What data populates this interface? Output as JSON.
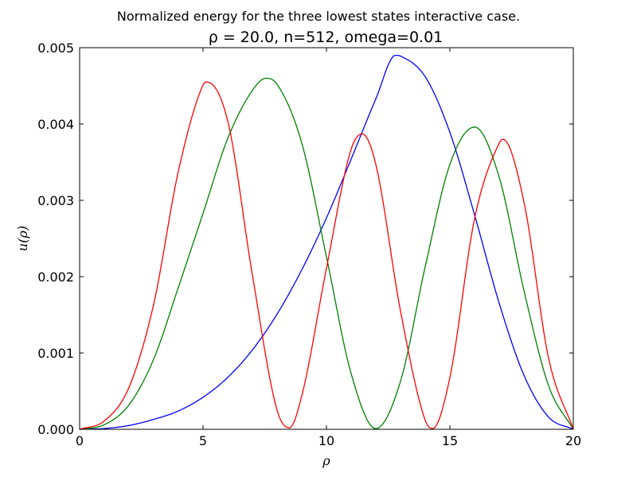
{
  "chart_data": {
    "type": "line",
    "suptitle": "Normalized energy for the three lowest states interactive case.",
    "title": "ρ = 20.0, n=512, omega=0.01",
    "xlabel": "ρ",
    "ylabel": "u(ρ)",
    "xlim": [
      0,
      20
    ],
    "ylim": [
      0,
      0.005
    ],
    "xticks": [
      "0",
      "5",
      "10",
      "15",
      "20"
    ],
    "yticks": [
      "0.000",
      "0.001",
      "0.002",
      "0.003",
      "0.004",
      "0.005"
    ],
    "grid": false,
    "legend": "none",
    "series": [
      {
        "color": "#0000ff",
        "x": [
          0,
          1,
          2,
          3,
          4,
          5,
          6,
          7,
          8,
          9,
          10,
          11,
          12,
          12.8,
          13,
          14,
          15,
          16,
          17,
          18,
          19,
          20
        ],
        "y": [
          0,
          1e-05,
          5e-05,
          0.00013,
          0.00024,
          0.00042,
          0.00068,
          0.00104,
          0.00151,
          0.00209,
          0.00277,
          0.00354,
          0.00433,
          0.0049,
          0.00489,
          0.00462,
          0.00389,
          0.00281,
          0.00165,
          0.00071,
          0.00016,
          0
        ]
      },
      {
        "color": "#008000",
        "x": [
          0,
          1,
          2,
          3,
          4,
          5,
          6,
          7,
          7.55,
          8,
          9,
          10,
          11,
          12,
          13,
          14,
          15,
          16,
          17,
          18,
          19,
          20
        ],
        "y": [
          0,
          6e-05,
          0.00032,
          0.00092,
          0.00186,
          0.00283,
          0.00381,
          0.00444,
          0.0046,
          0.00452,
          0.00375,
          0.00226,
          0.00073,
          1e-05,
          0.00063,
          0.00213,
          0.00347,
          0.00396,
          0.0033,
          0.00182,
          0.00057,
          0
        ]
      },
      {
        "color": "#ff0000",
        "x": [
          0,
          1,
          2,
          3,
          4,
          5,
          5.15,
          6,
          7,
          8,
          8.5,
          9,
          10,
          11,
          11.45,
          12,
          13,
          14,
          14.3,
          15,
          16,
          17,
          17.15,
          18,
          19,
          20
        ],
        "y": [
          0,
          0.00011,
          0.00055,
          0.00164,
          0.00338,
          0.00451,
          0.00455,
          0.00404,
          0.00202,
          0.00025,
          2e-05,
          0.00044,
          0.00211,
          0.00367,
          0.00387,
          0.00347,
          0.00155,
          0.00012,
          1e-05,
          0.00068,
          0.00276,
          0.00375,
          0.0038,
          0.00298,
          0.00093,
          0
        ]
      }
    ]
  }
}
